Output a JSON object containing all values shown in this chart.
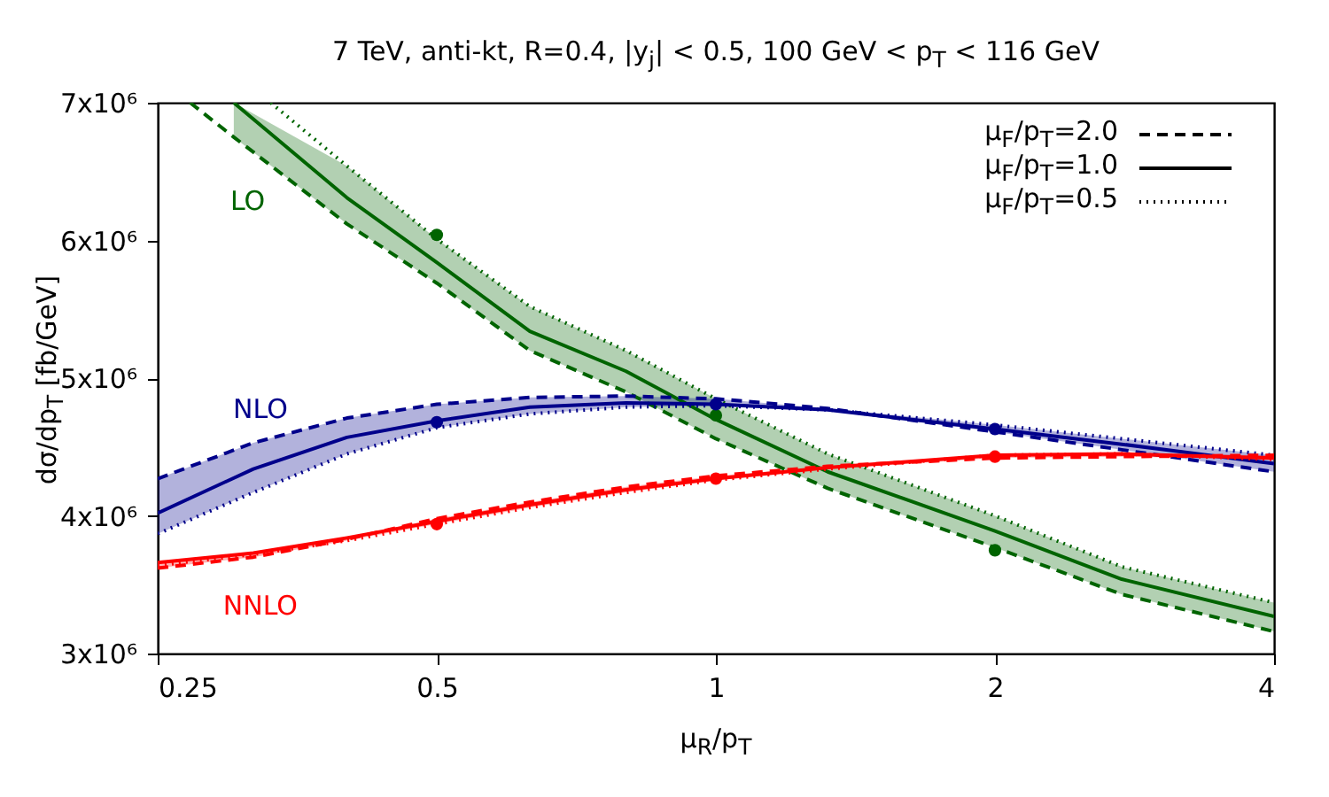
{
  "chart_data": {
    "type": "line",
    "title": "7 TeV, anti-kt, R=0.4, |y$_{j}$| < 0.5, 100 GeV < p$_{T}$ < 116 GeV",
    "xlabel": "μ$_{R}$/p$_{T}$",
    "ylabel": "dσ/dp$_{T}$ [fb/GeV]",
    "log": "x",
    "xlim": [
      0.25,
      4
    ],
    "xticks": [
      0.25,
      0.5,
      1,
      2,
      4
    ],
    "ylim": [
      3000000,
      7000000
    ],
    "yticks": [
      {
        "value": 3000000,
        "label": "3x10⁶"
      },
      {
        "value": 4000000,
        "label": "4x10⁶"
      },
      {
        "value": 5000000,
        "label": "5x10⁶"
      },
      {
        "value": 6000000,
        "label": "6x10⁶"
      },
      {
        "value": 7000000,
        "label": "7x10⁶"
      }
    ],
    "series": [
      {
        "color": "#006400",
        "line_style": "dashed",
        "x": [
          0.271,
          0.302,
          0.4,
          0.5,
          0.63,
          0.8,
          1,
          1.32,
          2,
          2.74,
          4
        ],
        "values": [
          7000000,
          6750000,
          6120000,
          5690000,
          5200000,
          4900000,
          4560000,
          4200000,
          3770000,
          3430000,
          3160000
        ]
      },
      {
        "name": "LO",
        "color": "#006400",
        "line_style": "solid",
        "x": [
          0.302,
          0.4,
          0.5,
          0.63,
          0.8,
          1,
          1.32,
          2,
          2.74,
          4
        ],
        "values": [
          7000000,
          6310000,
          5840000,
          5340000,
          5050000,
          4700000,
          4320000,
          3890000,
          3540000,
          3270000
        ],
        "lower": [
          6750000,
          6120000,
          5690000,
          5200000,
          4900000,
          4560000,
          4200000,
          3770000,
          3430000,
          3160000
        ],
        "upper": [
          7000000,
          6540000,
          6010000,
          5520000,
          5200000,
          4850000,
          4450000,
          4000000,
          3630000,
          3370000
        ]
      },
      {
        "color": "#006400",
        "line_style": "dotted",
        "x": [
          0.331,
          0.4,
          0.5,
          0.63,
          0.8,
          1,
          1.32,
          2,
          2.74,
          4
        ],
        "values": [
          7000000,
          6540000,
          6010000,
          5520000,
          5200000,
          4850000,
          4450000,
          4000000,
          3630000,
          3370000
        ]
      },
      {
        "color": "#00008b",
        "line_style": "dashed",
        "x": [
          0.25,
          0.317,
          0.4,
          0.5,
          0.63,
          0.8,
          1,
          1.32,
          2,
          2.74,
          4
        ],
        "values": [
          4270000,
          4530000,
          4710000,
          4810000,
          4860000,
          4870000,
          4850000,
          4780000,
          4610000,
          4480000,
          4320000
        ]
      },
      {
        "name": "NLO",
        "color": "#00008b",
        "line_style": "solid",
        "x": [
          0.25,
          0.317,
          0.4,
          0.5,
          0.63,
          0.8,
          1,
          1.32,
          2,
          2.74,
          4
        ],
        "values": [
          4020000,
          4340000,
          4570000,
          4690000,
          4790000,
          4820000,
          4810000,
          4770000,
          4630000,
          4520000,
          4380000
        ],
        "lower": [
          3870000,
          4170000,
          4450000,
          4640000,
          4740000,
          4790000,
          4800000,
          4770000,
          4610000,
          4480000,
          4320000
        ],
        "upper": [
          4270000,
          4530000,
          4710000,
          4810000,
          4860000,
          4870000,
          4850000,
          4780000,
          4660000,
          4560000,
          4440000
        ]
      },
      {
        "color": "#00008b",
        "line_style": "dotted",
        "x": [
          0.25,
          0.317,
          0.4,
          0.5,
          0.63,
          0.8,
          1,
          1.32,
          2,
          2.74,
          4
        ],
        "values": [
          3870000,
          4170000,
          4450000,
          4640000,
          4740000,
          4790000,
          4800000,
          4770000,
          4660000,
          4560000,
          4440000
        ]
      },
      {
        "color": "#ff0000",
        "line_style": "dashed",
        "x": [
          0.25,
          0.317,
          0.4,
          0.5,
          0.63,
          0.8,
          1,
          1.32,
          2,
          2.74,
          4
        ],
        "values": [
          3620000,
          3700000,
          3830000,
          3980000,
          4100000,
          4210000,
          4290000,
          4360000,
          4420000,
          4430000,
          4440000
        ]
      },
      {
        "name": "NNLO",
        "color": "#ff0000",
        "line_style": "solid",
        "x": [
          0.25,
          0.317,
          0.4,
          0.5,
          0.63,
          0.8,
          1,
          1.32,
          2,
          2.74,
          4
        ],
        "values": [
          3660000,
          3730000,
          3840000,
          3960000,
          4080000,
          4190000,
          4270000,
          4350000,
          4440000,
          4450000,
          4420000
        ],
        "lower": [
          3620000,
          3700000,
          3820000,
          3940000,
          4060000,
          4170000,
          4260000,
          4340000,
          4420000,
          4430000,
          4410000
        ],
        "upper": [
          3660000,
          3730000,
          3840000,
          3980000,
          4100000,
          4210000,
          4290000,
          4360000,
          4440000,
          4450000,
          4440000
        ]
      },
      {
        "color": "#ff0000",
        "line_style": "dotted",
        "x": [
          0.25,
          0.317,
          0.4,
          0.5,
          0.63,
          0.8,
          1,
          1.32,
          2,
          2.74,
          4
        ],
        "values": [
          3640000,
          3720000,
          3820000,
          3940000,
          4060000,
          4170000,
          4260000,
          4340000,
          4440000,
          4450000,
          4410000
        ]
      },
      {
        "type": "scatter",
        "marker": "circle",
        "color": "#006400",
        "x": [
          0.5,
          1,
          2
        ],
        "values": [
          6040000,
          4730000,
          3750000
        ]
      },
      {
        "type": "scatter",
        "marker": "circle",
        "color": "#00008b",
        "x": [
          0.5,
          1,
          2
        ],
        "values": [
          4680000,
          4810000,
          4630000
        ]
      },
      {
        "type": "scatter",
        "marker": "circle",
        "color": "#ff0000",
        "x": [
          0.5,
          1,
          2
        ],
        "values": [
          3940000,
          4270000,
          4430000
        ]
      }
    ],
    "annotations": [
      "μ$_{F}$/p$_{T}$=2.0",
      "μ$_{F}$/p$_{T}$=1.0",
      "μ$_{F}$/p$_{T}$=0.5"
    ]
  }
}
